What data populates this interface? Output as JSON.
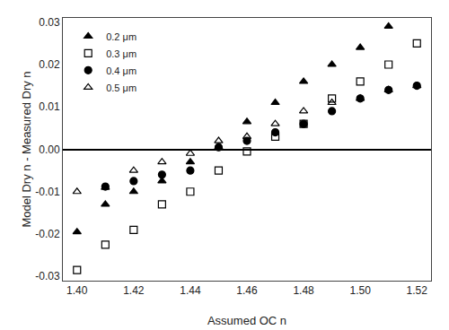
{
  "chart_data": {
    "type": "scatter",
    "xlabel": "Assumed OC n",
    "ylabel": "Model Dry n - Measured Dry n",
    "xlim": [
      1.395,
      1.525
    ],
    "ylim": [
      -0.031,
      0.031
    ],
    "xticks": [
      {
        "value": 1.4,
        "label": "1.40"
      },
      1.42,
      1.44,
      1.46,
      1.48,
      {
        "value": 1.5,
        "label": "1.50"
      },
      1.52
    ],
    "yticks": [
      -0.03,
      -0.02,
      -0.01,
      {
        "value": 0.0,
        "label": "0.00"
      },
      0.01,
      0.02,
      0.03
    ],
    "grid": false,
    "legend": "upper left",
    "series": [
      {
        "name": "0.2 μm",
        "marker": "triangle-up",
        "color": "black",
        "x": [
          1.4,
          1.41,
          1.42,
          1.43,
          1.44,
          1.45,
          1.46,
          1.47,
          1.48,
          1.49,
          1.5,
          1.51
        ],
        "values": [
          -0.0195,
          -0.013,
          -0.01,
          -0.0075,
          -0.003,
          0.0005,
          0.0065,
          0.011,
          0.016,
          0.02,
          0.024,
          0.029
        ]
      },
      {
        "name": "0.3 μm",
        "marker": "square-open",
        "color": "black",
        "x": [
          1.4,
          1.41,
          1.42,
          1.43,
          1.44,
          1.45,
          1.46,
          1.47,
          1.48,
          1.49,
          1.5,
          1.51,
          1.52
        ],
        "values": [
          -0.0285,
          -0.0225,
          -0.019,
          -0.013,
          -0.01,
          -0.005,
          -0.0005,
          0.003,
          0.006,
          0.012,
          0.016,
          0.02,
          0.025
        ]
      },
      {
        "name": "0.4 μm",
        "marker": "circle",
        "color": "black",
        "x": [
          1.41,
          1.42,
          1.43,
          1.44,
          1.45,
          1.46,
          1.47,
          1.48,
          1.49,
          1.5,
          1.51,
          1.52
        ],
        "values": [
          -0.0088,
          -0.0075,
          -0.006,
          -0.005,
          0.0005,
          0.002,
          0.004,
          0.006,
          0.009,
          0.012,
          0.014,
          0.015
        ]
      },
      {
        "name": "0.5 μm",
        "marker": "triangle-up-open",
        "color": "black",
        "x": [
          1.4,
          1.41,
          1.42,
          1.43,
          1.44,
          1.45,
          1.46,
          1.47,
          1.48,
          1.49,
          1.5,
          1.51,
          1.52
        ],
        "values": [
          -0.01,
          -0.009,
          -0.005,
          -0.003,
          -0.001,
          0.002,
          0.003,
          0.006,
          0.009,
          0.011,
          0.012,
          0.014,
          0.015
        ]
      }
    ]
  }
}
